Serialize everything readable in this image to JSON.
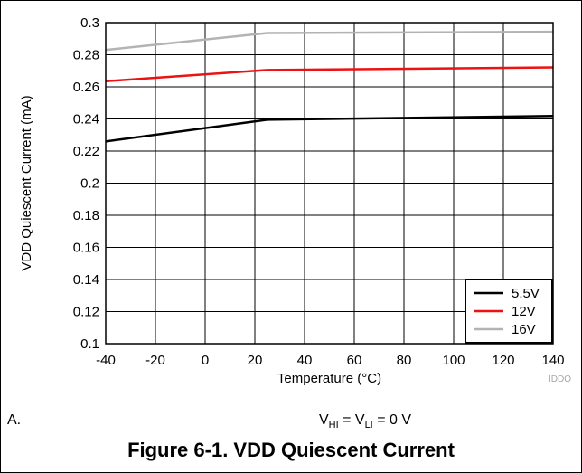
{
  "chart_data": {
    "type": "line",
    "title": "",
    "xlabel": "Temperature (°C)",
    "ylabel": "VDD Quiescent Current (mA)",
    "xlim": [
      -40,
      140
    ],
    "ylim": [
      0.1,
      0.3
    ],
    "x_ticks": [
      -40,
      -20,
      0,
      20,
      40,
      60,
      80,
      100,
      120,
      140
    ],
    "y_ticks": [
      0.1,
      0.12,
      0.14,
      0.16,
      0.18,
      0.2,
      0.22,
      0.24,
      0.26,
      0.28,
      0.3
    ],
    "y_tick_labels": [
      "0.1",
      "0.12",
      "0.14",
      "0.16",
      "0.18",
      "0.2",
      "0.22",
      "0.24",
      "0.26",
      "0.28",
      "0.3"
    ],
    "grid": true,
    "legend_position": "bottom-right",
    "series": [
      {
        "name": "5.5V",
        "color": "#000000",
        "x": [
          -40,
          25,
          140
        ],
        "y": [
          0.226,
          0.2395,
          0.2418
        ]
      },
      {
        "name": "12V",
        "color": "#ee1111",
        "x": [
          -40,
          25,
          140
        ],
        "y": [
          0.2635,
          0.2705,
          0.2721
        ]
      },
      {
        "name": "16V",
        "color": "#b3b3b3",
        "x": [
          -40,
          25,
          140
        ],
        "y": [
          0.283,
          0.2935,
          0.2943
        ]
      }
    ]
  },
  "watermark": "IDDQ",
  "note": {
    "label": "A.",
    "v_hi": "V",
    "v_hi_sub": "HI",
    "v_li": "V",
    "v_li_sub": "LI",
    "v_equal_mid": " = ",
    "v_equal_end": " = 0 V"
  },
  "caption": "Figure 6-1. VDD Quiescent Current"
}
